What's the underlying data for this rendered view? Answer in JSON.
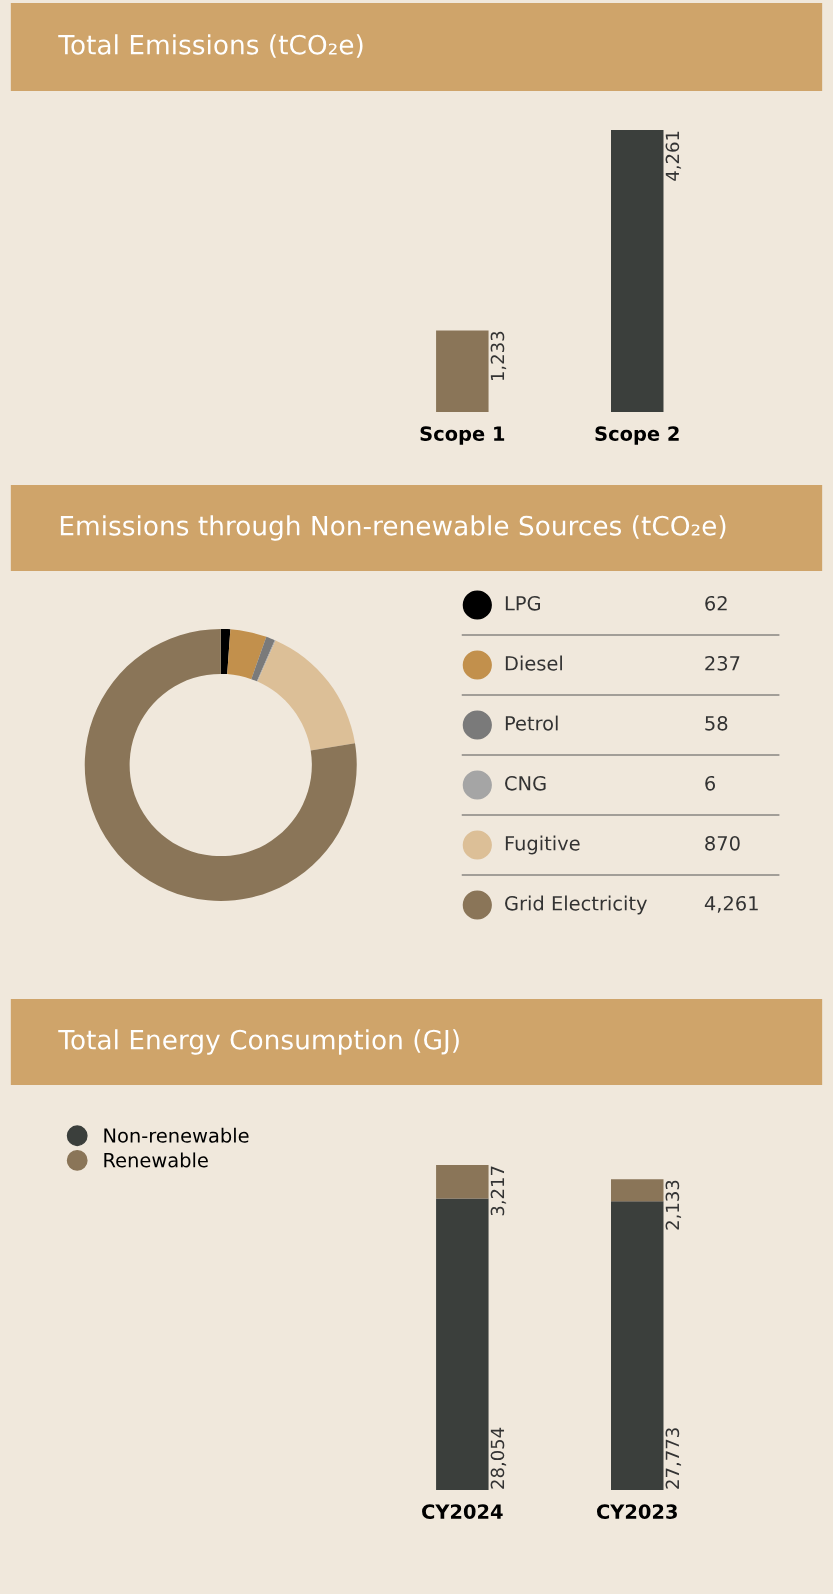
{
  "chart_data": [
    {
      "type": "bar",
      "title": "Total Emissions (tCO₂e)",
      "categories": [
        "Scope 1",
        "Scope 2"
      ],
      "values": [
        1233,
        4261
      ],
      "value_labels": [
        "1,233",
        "4,261"
      ],
      "colors": [
        "#8a7558",
        "#3b3f3c"
      ]
    },
    {
      "type": "donut",
      "title": "Emissions through Non-renewable Sources (tCO₂e)",
      "categories": [
        "LPG",
        "Diesel",
        "Petrol",
        "CNG",
        "Fugitive",
        "Grid Electricity"
      ],
      "values": [
        62,
        237,
        58,
        6,
        870,
        4261
      ],
      "colors": [
        "#000000",
        "#c2904c",
        "#7a7a7a",
        "#a5a5a5",
        "#dcbf97",
        "#8a7558"
      ],
      "legend": "right",
      "value_labels": [
        "62",
        "237",
        "58",
        "6",
        "870",
        "4,261"
      ]
    },
    {
      "type": "bar",
      "stacked": true,
      "title": "Total Energy Consumption (GJ)",
      "categories": [
        "CY2024",
        "CY2023"
      ],
      "legend": "top left",
      "series": [
        {
          "name": "Non-renewable",
          "color": "#3b3f3c",
          "values": [
            28054,
            27773
          ],
          "value_labels": [
            "28,054",
            "27,773"
          ]
        },
        {
          "name": "Renewable",
          "color": "#8a7558",
          "values": [
            3217,
            2133
          ],
          "value_labels": [
            "3,217",
            "2,133"
          ]
        }
      ]
    }
  ]
}
